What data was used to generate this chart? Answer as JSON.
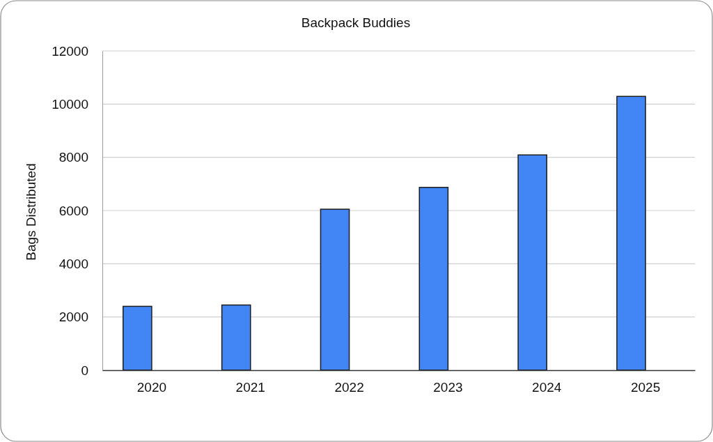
{
  "chart_data": {
    "type": "bar",
    "title": "Backpack Buddies",
    "ylabel": "Bags Distributed",
    "categories": [
      "2020",
      "2021",
      "2022",
      "2023",
      "2024",
      "2025"
    ],
    "values": [
      2400,
      2450,
      6050,
      6870,
      8090,
      10290
    ],
    "color": "#4285f4",
    "ylim": [
      0,
      12000
    ],
    "yticks": [
      0,
      2000,
      4000,
      6000,
      8000,
      10000,
      12000
    ],
    "grid": "y",
    "legend": false
  }
}
